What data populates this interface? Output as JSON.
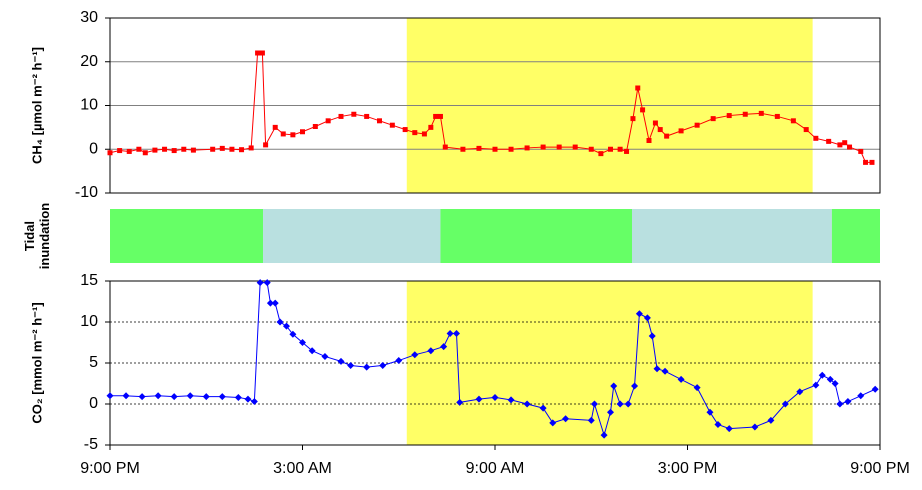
{
  "chart_data": [
    {
      "type": "line",
      "y_label": "CH₄ [µmol m⁻² h⁻¹]",
      "xlim": [
        0,
        24
      ],
      "ylim": [
        -10,
        30
      ],
      "yticks": [
        -10,
        0,
        10,
        20,
        30
      ],
      "grid": "solid",
      "highlight_x": [
        9.25,
        21.9
      ],
      "highlight_color": "#ffff66",
      "marker": "square",
      "series": [
        {
          "name": "CH4",
          "color": "#ff0000",
          "x": [
            0,
            0.3,
            0.6,
            0.9,
            1.1,
            1.4,
            1.7,
            2.0,
            2.3,
            2.6,
            3.2,
            3.5,
            3.8,
            4.1,
            4.4,
            4.6,
            4.75,
            4.85,
            5.15,
            5.4,
            5.7,
            6.0,
            6.4,
            6.8,
            7.2,
            7.6,
            8.0,
            8.4,
            8.8,
            9.2,
            9.5,
            9.8,
            10.0,
            10.15,
            10.3,
            10.45,
            11,
            11.5,
            12,
            12.5,
            13,
            13.5,
            14,
            14.5,
            15,
            15.3,
            15.6,
            15.9,
            16.1,
            16.3,
            16.45,
            16.6,
            16.8,
            17.0,
            17.15,
            17.35,
            17.8,
            18.3,
            18.8,
            19.3,
            19.8,
            20.3,
            20.8,
            21.3,
            21.7,
            22.0,
            22.4,
            22.75,
            22.9,
            23.05,
            23.4,
            23.55,
            23.75
          ],
          "values": [
            -0.8,
            -0.3,
            -0.5,
            0,
            -0.8,
            -0.2,
            0,
            -0.3,
            0,
            -0.2,
            0,
            0.2,
            0,
            -0.1,
            0.3,
            22,
            22,
            1,
            5,
            3.5,
            3.3,
            4,
            5.2,
            6.5,
            7.5,
            8,
            7.5,
            6.5,
            5.5,
            4.5,
            3.8,
            3.5,
            5,
            7.5,
            7.5,
            0.5,
            0,
            0.2,
            0,
            0,
            0.3,
            0.5,
            0.5,
            0.5,
            0,
            -1,
            0,
            0,
            -0.5,
            7,
            14,
            9,
            2,
            6,
            4.5,
            3,
            4.2,
            5.5,
            7,
            7.7,
            8,
            8.2,
            7.5,
            6.5,
            4.5,
            2.5,
            1.8,
            1,
            1.5,
            0.5,
            -0.5,
            -3,
            -3
          ]
        }
      ]
    },
    {
      "type": "timeline",
      "y_label": "Tidal inundation",
      "xlim": [
        0,
        24
      ],
      "segments": [
        {
          "start": 0,
          "end": 4.77,
          "color": "#66ff66"
        },
        {
          "start": 4.77,
          "end": 10.3,
          "color": "#b9e0e0"
        },
        {
          "start": 10.3,
          "end": 16.27,
          "color": "#66ff66"
        },
        {
          "start": 16.27,
          "end": 22.5,
          "color": "#b9e0e0"
        },
        {
          "start": 22.5,
          "end": 24,
          "color": "#66ff66"
        }
      ]
    },
    {
      "type": "line",
      "y_label": "CO₂ [mmol m⁻² h⁻¹]",
      "xlim": [
        0,
        24
      ],
      "ylim": [
        -5,
        15
      ],
      "yticks": [
        -5,
        0,
        5,
        10,
        15
      ],
      "grid": "dotted",
      "highlight_x": [
        9.25,
        21.9
      ],
      "highlight_color": "#ffff66",
      "marker": "diamond",
      "xticks": [
        {
          "value": 0,
          "label": "9:00 PM"
        },
        {
          "value": 6,
          "label": "3:00 AM"
        },
        {
          "value": 12,
          "label": "9:00 AM"
        },
        {
          "value": 18,
          "label": "3:00 PM"
        },
        {
          "value": 24,
          "label": "9:00 PM"
        }
      ],
      "series": [
        {
          "name": "CO2",
          "color": "#0000ff",
          "x": [
            0,
            0.5,
            1,
            1.5,
            2,
            2.5,
            3,
            3.5,
            4,
            4.3,
            4.5,
            4.68,
            4.9,
            5.0,
            5.15,
            5.3,
            5.5,
            5.7,
            6.0,
            6.3,
            6.7,
            7.2,
            7.5,
            8.0,
            8.5,
            9.0,
            9.5,
            10.0,
            10.4,
            10.6,
            10.8,
            10.9,
            11.5,
            12,
            12.5,
            13,
            13.5,
            13.8,
            14.2,
            15.0,
            15.1,
            15.4,
            15.6,
            15.7,
            15.9,
            16.15,
            16.35,
            16.5,
            16.75,
            16.9,
            17.05,
            17.3,
            17.8,
            18.3,
            18.7,
            18.95,
            19.3,
            20.1,
            20.6,
            21.05,
            21.5,
            22.0,
            22.2,
            22.45,
            22.6,
            22.75,
            23.0,
            23.4,
            23.85
          ],
          "values": [
            1,
            1,
            0.9,
            1,
            0.9,
            1,
            0.9,
            0.9,
            0.8,
            0.6,
            0.3,
            14.8,
            14.8,
            12.3,
            12.3,
            10,
            9.5,
            8.5,
            7.5,
            6.5,
            5.8,
            5.2,
            4.7,
            4.5,
            4.7,
            5.3,
            6,
            6.5,
            7,
            8.6,
            8.6,
            0.2,
            0.6,
            0.8,
            0.5,
            0,
            -0.5,
            -2.3,
            -1.8,
            -2,
            0,
            -3.8,
            -1,
            2.2,
            0,
            0,
            2.2,
            11,
            10.5,
            8.3,
            4.3,
            4,
            3,
            2,
            -1,
            -2.5,
            -3,
            -2.8,
            -2,
            0,
            1.5,
            2.3,
            3.5,
            3,
            2.5,
            0,
            0.3,
            1,
            1.8
          ]
        }
      ]
    }
  ]
}
